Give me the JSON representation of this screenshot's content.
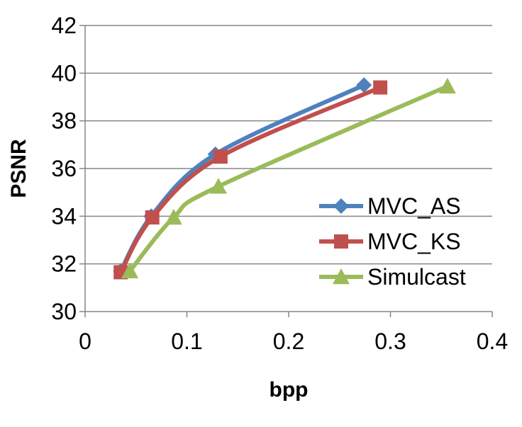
{
  "chart_data": {
    "type": "line",
    "title": "",
    "xlabel": "bpp",
    "ylabel": "PSNR",
    "xlim": [
      0,
      0.4
    ],
    "ylim": [
      30,
      42
    ],
    "xticks": [
      "0",
      "0.1",
      "0.2",
      "0.3",
      "0.4"
    ],
    "yticks": [
      "30",
      "32",
      "34",
      "36",
      "38",
      "40",
      "42"
    ],
    "grid": "horizontal",
    "legend": "right",
    "series": [
      {
        "name": "MVC_AS",
        "color": "#4F81BD",
        "marker": "diamond",
        "x": [
          0.035,
          0.065,
          0.128,
          0.274
        ],
        "y": [
          31.7,
          34.0,
          36.6,
          39.5
        ]
      },
      {
        "name": "MVC_KS",
        "color": "#C0504D",
        "marker": "square",
        "x": [
          0.035,
          0.066,
          0.133,
          0.29
        ],
        "y": [
          31.65,
          33.95,
          36.5,
          39.4
        ]
      },
      {
        "name": "Simulcast",
        "color": "#9BBB59",
        "marker": "triangle",
        "x": [
          0.044,
          0.087,
          0.131,
          0.356
        ],
        "y": [
          31.7,
          33.95,
          35.25,
          39.45
        ]
      }
    ]
  }
}
